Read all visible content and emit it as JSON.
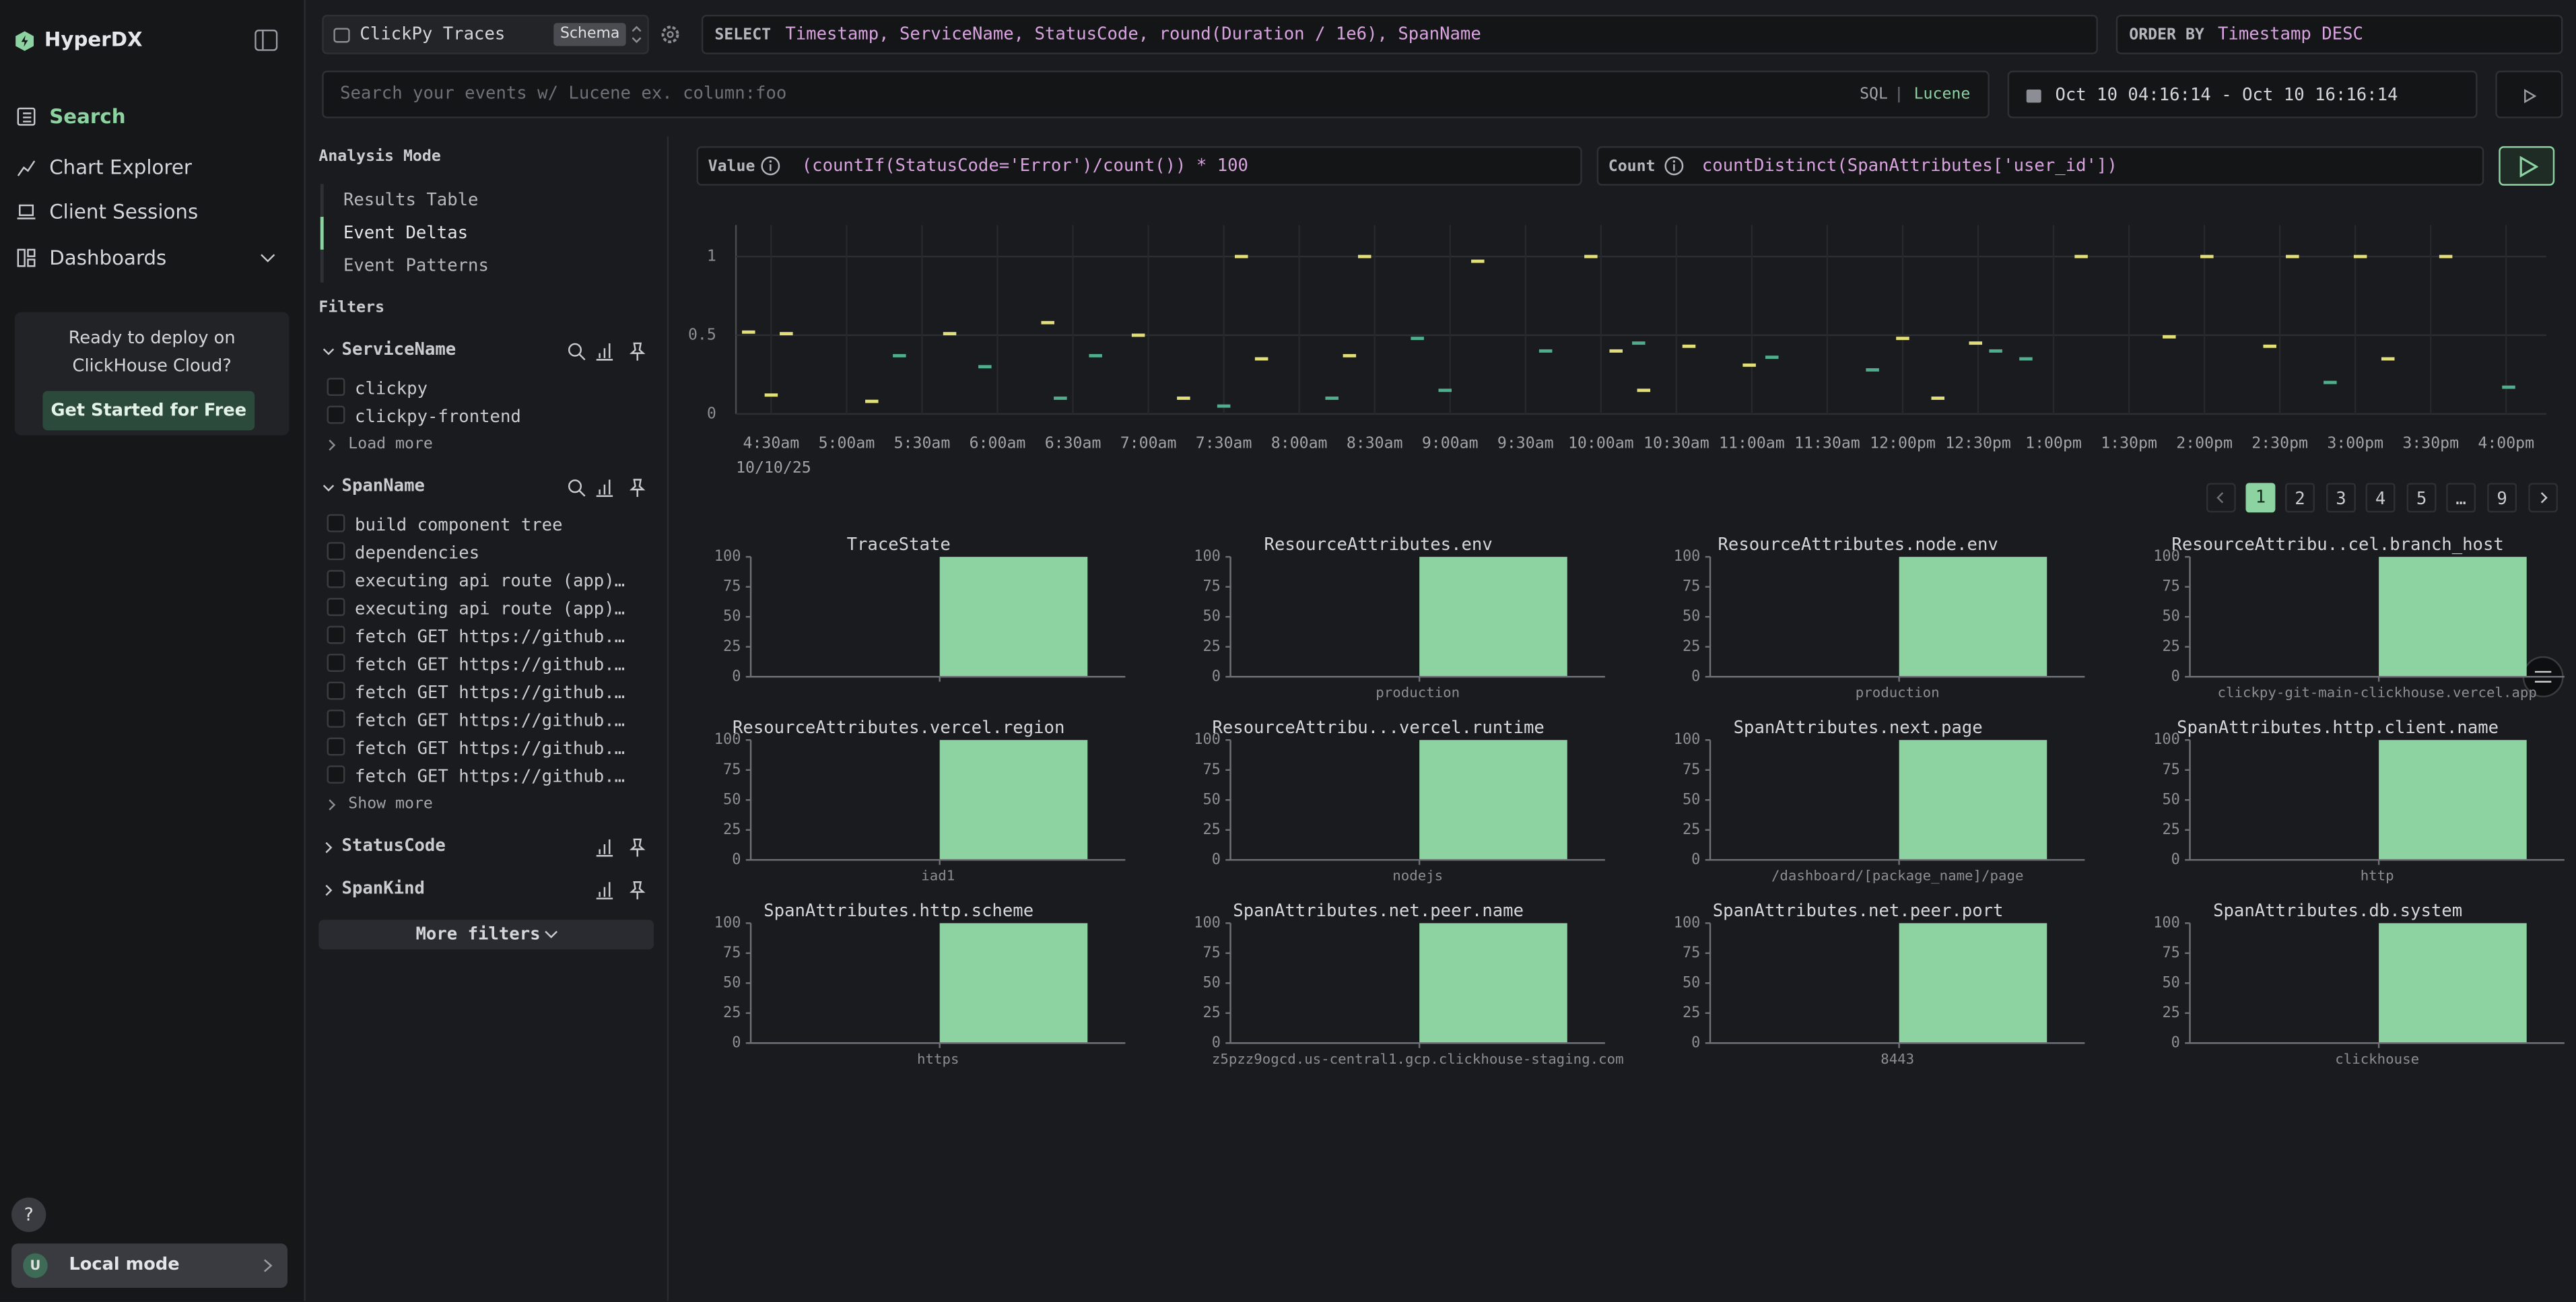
{
  "app": {
    "name": "HyperDX"
  },
  "nav": [
    "Search",
    "Chart Explorer",
    "Client Sessions",
    "Dashboards"
  ],
  "promo": {
    "lines": [
      "Ready to deploy on",
      "ClickHouse Cloud?"
    ],
    "button": "Get Started for Free"
  },
  "help": "?",
  "mode": {
    "avatar": "U",
    "label": "Local mode"
  },
  "source": {
    "name": "ClickPy Traces",
    "badge": "Schema"
  },
  "select": {
    "keyword": "SELECT",
    "expr": "Timestamp, ServiceName, StatusCode, round(Duration / 1e6), SpanName"
  },
  "order": {
    "keyword": "ORDER BY",
    "expr": "Timestamp DESC"
  },
  "search": {
    "placeholder": "Search your events w/ Lucene ex. column:foo",
    "sql": "SQL",
    "sep": "|",
    "lucene": "Lucene"
  },
  "time_range": "Oct 10 04:16:14 - Oct 10 16:16:14",
  "analysis": {
    "title": "Analysis Mode",
    "modes": [
      "Results Table",
      "Event Deltas",
      "Event Patterns"
    ],
    "active_index": 1
  },
  "filters": {
    "title": "Filters",
    "groups": [
      {
        "name": "ServiceName",
        "values": [
          "clickpy",
          "clickpy-frontend"
        ],
        "more": "Load more"
      },
      {
        "name": "SpanName",
        "values": [
          "build component tree",
          "dependencies",
          "executing api route (app)…",
          "executing api route (app)…",
          "fetch GET https://github.…",
          "fetch GET https://github.…",
          "fetch GET https://github.…",
          "fetch GET https://github.…",
          "fetch GET https://github.…",
          "fetch GET https://github.…"
        ],
        "more": "Show more"
      },
      {
        "name": "StatusCode"
      },
      {
        "name": "SpanKind"
      }
    ],
    "more_filters": "More filters"
  },
  "deltas": {
    "value_label": "Value",
    "value_expr": "(countIf(StatusCode='Error')/count()) * 100",
    "count_label": "Count",
    "count_expr": "countDistinct(SpanAttributes['user_id'])"
  },
  "pagination": {
    "pages": [
      "1",
      "2",
      "3",
      "4",
      "5",
      "…",
      "9"
    ],
    "active_index": 0
  },
  "chart_data": [
    {
      "type": "scatter",
      "date": "10/10/25",
      "xlim": [
        256,
        976
      ],
      "ylim": [
        0,
        1.2
      ],
      "grid": true,
      "xticks": [
        {
          "value": 270,
          "label": "4:30am"
        },
        {
          "value": 300,
          "label": "5:00am"
        },
        {
          "value": 330,
          "label": "5:30am"
        },
        {
          "value": 360,
          "label": "6:00am"
        },
        {
          "value": 390,
          "label": "6:30am"
        },
        {
          "value": 420,
          "label": "7:00am"
        },
        {
          "value": 450,
          "label": "7:30am"
        },
        {
          "value": 480,
          "label": "8:00am"
        },
        {
          "value": 510,
          "label": "8:30am"
        },
        {
          "value": 540,
          "label": "9:00am"
        },
        {
          "value": 570,
          "label": "9:30am"
        },
        {
          "value": 600,
          "label": "10:00am"
        },
        {
          "value": 630,
          "label": "10:30am"
        },
        {
          "value": 660,
          "label": "11:00am"
        },
        {
          "value": 690,
          "label": "11:30am"
        },
        {
          "value": 720,
          "label": "12:00pm"
        },
        {
          "value": 750,
          "label": "12:30pm"
        },
        {
          "value": 780,
          "label": "1:00pm"
        },
        {
          "value": 810,
          "label": "1:30pm"
        },
        {
          "value": 840,
          "label": "2:00pm"
        },
        {
          "value": 870,
          "label": "2:30pm"
        },
        {
          "value": 900,
          "label": "3:00pm"
        },
        {
          "value": 930,
          "label": "3:30pm"
        },
        {
          "value": 960,
          "label": "4:00pm"
        }
      ],
      "yticks": [
        0,
        0.5,
        1
      ],
      "series": [
        {
          "color": "#e2df78",
          "x": [
            261,
            276,
            341,
            380,
            416,
            457,
            465,
            500,
            506,
            551,
            596,
            606,
            635,
            659,
            720,
            749,
            791,
            826,
            841,
            866,
            875,
            902,
            913,
            936,
            270,
            310,
            434,
            617,
            734
          ],
          "values": [
            0.52,
            0.51,
            0.51,
            0.58,
            0.5,
            1,
            0.35,
            0.37,
            1,
            0.97,
            1,
            0.4,
            0.43,
            0.31,
            0.48,
            0.45,
            1,
            0.49,
            1,
            0.43,
            1,
            1,
            0.35,
            1,
            0.12,
            0.08,
            0.1,
            0.15,
            0.1
          ]
        },
        {
          "color": "#4fae8c",
          "x": [
            321,
            355,
            385,
            399,
            450,
            493,
            527,
            538,
            578,
            615,
            668,
            708,
            757,
            769,
            890,
            961
          ],
          "values": [
            0.37,
            0.3,
            0.1,
            0.37,
            0.05,
            0.1,
            0.48,
            0.15,
            0.4,
            0.45,
            0.36,
            0.28,
            0.4,
            0.35,
            0.2,
            0.17
          ]
        }
      ]
    },
    {
      "type": "bar",
      "title": "TraceState",
      "categories": [
        null
      ],
      "values": [
        100
      ],
      "ylim": [
        0,
        100
      ],
      "yticks": [
        0,
        25,
        50,
        75,
        100
      ],
      "color": "#8cd3a1"
    },
    {
      "type": "bar",
      "title": "ResourceAttributes.env",
      "categories": [
        "production"
      ],
      "values": [
        100
      ],
      "ylim": [
        0,
        100
      ],
      "yticks": [
        0,
        25,
        50,
        75,
        100
      ],
      "color": "#8cd3a1"
    },
    {
      "type": "bar",
      "title": "ResourceAttributes.node.env",
      "categories": [
        "production"
      ],
      "values": [
        100
      ],
      "ylim": [
        0,
        100
      ],
      "yticks": [
        0,
        25,
        50,
        75,
        100
      ],
      "color": "#8cd3a1"
    },
    {
      "type": "bar",
      "title": "ResourceAttribu..cel.branch_host",
      "categories": [
        "clickpy-git-main-clickhouse.vercel.app"
      ],
      "values": [
        100
      ],
      "ylim": [
        0,
        100
      ],
      "yticks": [
        0,
        25,
        50,
        75,
        100
      ],
      "color": "#8cd3a1"
    },
    {
      "type": "bar",
      "title": "ResourceAttributes.vercel.region",
      "categories": [
        "iad1"
      ],
      "values": [
        100
      ],
      "ylim": [
        0,
        100
      ],
      "yticks": [
        0,
        25,
        50,
        75,
        100
      ],
      "color": "#8cd3a1"
    },
    {
      "type": "bar",
      "title": "ResourceAttribu...vercel.runtime",
      "categories": [
        "nodejs"
      ],
      "values": [
        100
      ],
      "ylim": [
        0,
        100
      ],
      "yticks": [
        0,
        25,
        50,
        75,
        100
      ],
      "color": "#8cd3a1"
    },
    {
      "type": "bar",
      "title": "SpanAttributes.next.page",
      "categories": [
        "/dashboard/[package_name]/page"
      ],
      "values": [
        100
      ],
      "ylim": [
        0,
        100
      ],
      "yticks": [
        0,
        25,
        50,
        75,
        100
      ],
      "color": "#8cd3a1"
    },
    {
      "type": "bar",
      "title": "SpanAttributes.http.client.name",
      "categories": [
        "http"
      ],
      "values": [
        100
      ],
      "ylim": [
        0,
        100
      ],
      "yticks": [
        0,
        25,
        50,
        75,
        100
      ],
      "color": "#8cd3a1"
    },
    {
      "type": "bar",
      "title": "SpanAttributes.http.scheme",
      "categories": [
        "https"
      ],
      "values": [
        100
      ],
      "ylim": [
        0,
        100
      ],
      "yticks": [
        0,
        25,
        50,
        75,
        100
      ],
      "color": "#8cd3a1"
    },
    {
      "type": "bar",
      "title": "SpanAttributes.net.peer.name",
      "categories": [
        "z5pzz9ogcd.us-central1.gcp.clickhouse-staging.com"
      ],
      "values": [
        100
      ],
      "ylim": [
        0,
        100
      ],
      "yticks": [
        0,
        25,
        50,
        75,
        100
      ],
      "color": "#8cd3a1"
    },
    {
      "type": "bar",
      "title": "SpanAttributes.net.peer.port",
      "categories": [
        "8443"
      ],
      "values": [
        100
      ],
      "ylim": [
        0,
        100
      ],
      "yticks": [
        0,
        25,
        50,
        75,
        100
      ],
      "color": "#8cd3a1"
    },
    {
      "type": "bar",
      "title": "SpanAttributes.db.system",
      "categories": [
        "clickhouse"
      ],
      "values": [
        100
      ],
      "ylim": [
        0,
        100
      ],
      "yticks": [
        0,
        25,
        50,
        75,
        100
      ],
      "color": "#8cd3a1"
    }
  ]
}
